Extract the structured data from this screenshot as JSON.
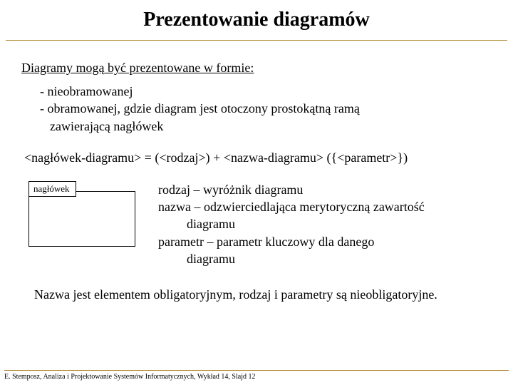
{
  "title": "Prezentowanie diagramów",
  "subtitle": "Diagramy mogą być prezentowane w formie:",
  "bullets": {
    "b1": "- nieobramowanej",
    "b2": "- obramowanej, gdzie diagram jest otoczony prostokątną ramą",
    "b2_indent": "zawierającą nagłówek"
  },
  "formula": "<nagłówek-diagramu> = (<rodzaj>) + <nazwa-diagramu> ({<parametr>})",
  "diagram_label": "nagłówek",
  "definitions": {
    "line1": "rodzaj – wyróżnik diagramu",
    "line2": "nazwa – odzwierciedlająca merytoryczną zawartość",
    "line2_indent": "diagramu",
    "line3": "parametr – parametr kluczowy dla danego",
    "line3_indent": "diagramu"
  },
  "bottom": "Nazwa jest elementem obligatoryjnym, rodzaj i parametry są nieobligatoryjne.",
  "footer": "E. Stemposz, Analiza i Projektowanie Systemów Informatycznych, Wykład 14, Slajd 12",
  "colors": {
    "line_color": "#b08830",
    "text_color": "#000000",
    "background": "#ffffff"
  }
}
